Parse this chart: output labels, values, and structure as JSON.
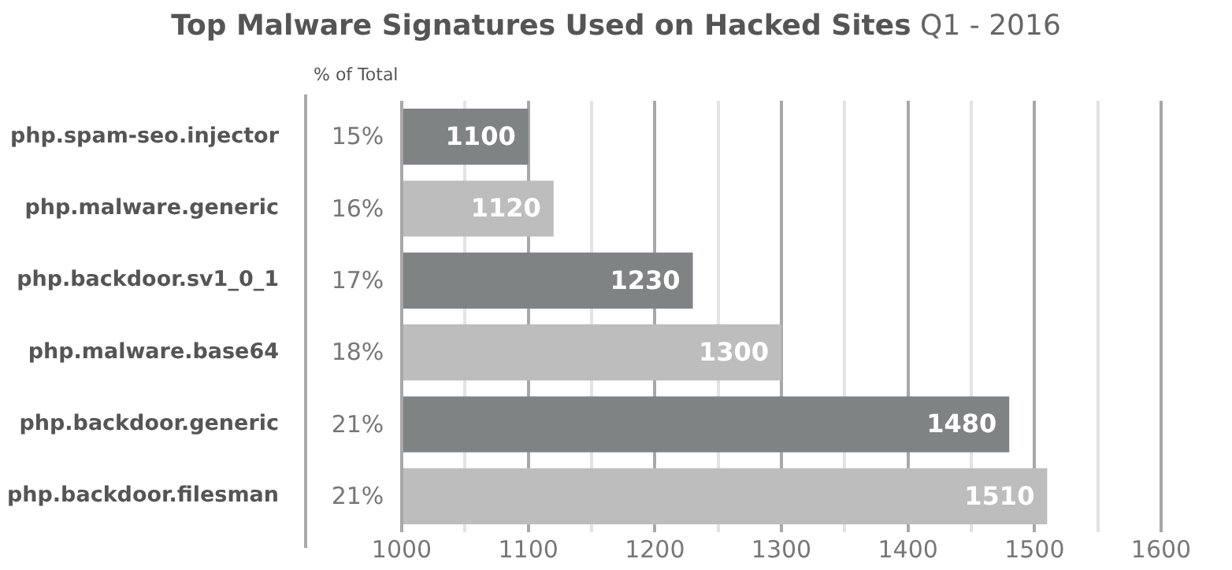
{
  "chart_data": {
    "type": "bar",
    "orientation": "horizontal",
    "title": "Top Malware Signatures Used on Hacked Sites",
    "subtitle": "Q1 - 2016",
    "categories": [
      "php.spam-seo.injector",
      "php.malware.generic",
      "php.backdoor.sv1_0_1",
      "php.malware.base64",
      "php.backdoor.generic",
      "php.backdoor.filesman"
    ],
    "values": [
      1100,
      1120,
      1230,
      1300,
      1480,
      1510
    ],
    "colors": [
      "#808383",
      "#bdbdbd",
      "#808383",
      "#bdbdbd",
      "#808383",
      "#bdbdbd"
    ],
    "xlim": [
      1000,
      1600
    ],
    "xticks": [
      1000,
      {
        "value": 1050,
        "label": null
      },
      1100,
      {
        "value": 1150,
        "label": null
      },
      1200,
      {
        "value": 1250,
        "label": null
      },
      1300,
      {
        "value": 1350,
        "label": null
      },
      1400,
      {
        "value": 1450,
        "label": null
      },
      1500,
      {
        "value": 1550,
        "label": null
      },
      1600
    ],
    "grid": "x",
    "legend": false,
    "data_labels": true,
    "annotations": [
      "% of Total",
      "15%",
      "16%",
      "17%",
      "18%",
      "21%",
      "21%"
    ]
  }
}
